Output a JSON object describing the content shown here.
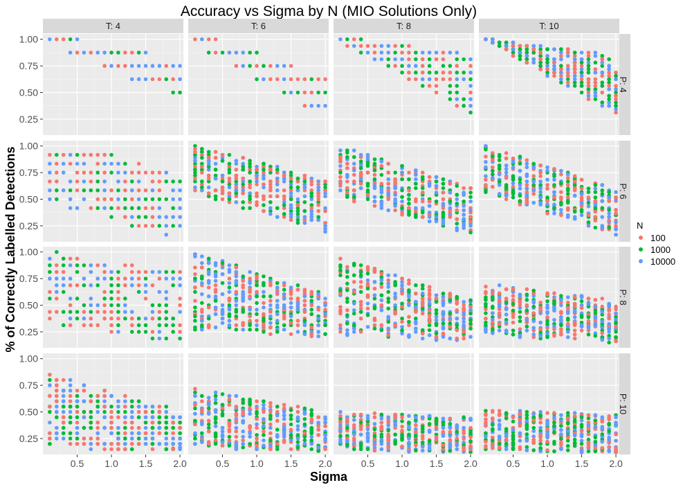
{
  "chart_data": {
    "type": "scatter",
    "title": "Accuracy vs Sigma by N (MIO Solutions Only)",
    "xlabel": "Sigma",
    "ylabel": "% of Correctly Labelled Detections",
    "xlim": [
      0.0,
      2.05
    ],
    "ylim": [
      0.1,
      1.05
    ],
    "x_ticks": [
      "0.5",
      "1.0",
      "1.5",
      "2.0"
    ],
    "x_tick_values": [
      0.5,
      1.0,
      1.5,
      2.0
    ],
    "y_ticks": [
      "0.25",
      "0.50",
      "0.75",
      "1.00"
    ],
    "y_tick_values": [
      0.25,
      0.5,
      0.75,
      1.0
    ],
    "grid": true,
    "facet_columns": [
      "T: 4",
      "T: 6",
      "T: 8",
      "T: 10"
    ],
    "facet_rows": [
      "P: 4",
      "P: 6",
      "P: 8",
      "P: 10"
    ],
    "legend": {
      "title": "N",
      "position": "right",
      "entries": [
        {
          "label": "100",
          "color": "#F8766D"
        },
        {
          "label": "1000",
          "color": "#00BA38"
        },
        {
          "label": "10000",
          "color": "#619CFF"
        }
      ]
    },
    "sigma_values": [
      0.1,
      0.2,
      0.3,
      0.4,
      0.5,
      0.6,
      0.7,
      0.8,
      0.9,
      1.0,
      1.1,
      1.2,
      1.3,
      1.4,
      1.5,
      1.6,
      1.7,
      1.8,
      1.9,
      2.0
    ],
    "panels": [
      {
        "T": 4,
        "P": 4,
        "discrete": 8,
        "start": [
          1.0,
          1.0
        ],
        "end": [
          0.75,
          0.5
        ],
        "spread_lo": 0.25,
        "min_start": 0.2
      },
      {
        "T": 6,
        "P": 4,
        "discrete": 8,
        "start": [
          1.0,
          1.0
        ],
        "end": [
          0.62,
          0.3
        ],
        "spread_lo": 0.2,
        "min_start": 0.55
      },
      {
        "T": 8,
        "P": 4,
        "discrete": 16,
        "start": [
          1.0,
          1.0
        ],
        "end": [
          0.85,
          0.3
        ],
        "spread_lo": 0.2,
        "min_start": 0.55
      },
      {
        "T": 10,
        "P": 4,
        "discrete": 32,
        "start": [
          1.0,
          1.0
        ],
        "end": [
          0.85,
          0.3
        ],
        "spread_lo": 0.15,
        "min_start": 0.6
      },
      {
        "T": 4,
        "P": 6,
        "discrete": 12,
        "start": [
          1.0,
          0.5
        ],
        "end": [
          0.75,
          0.15
        ],
        "spread_lo": 0.25,
        "min_start": 0.0
      },
      {
        "T": 6,
        "P": 6,
        "discrete": 36,
        "start": [
          1.0,
          0.55
        ],
        "end": [
          0.68,
          0.2
        ],
        "spread_lo": 0.25,
        "min_start": 0.0
      },
      {
        "T": 8,
        "P": 6,
        "discrete": 48,
        "start": [
          1.0,
          0.52
        ],
        "end": [
          0.62,
          0.18
        ],
        "spread_lo": 0.25,
        "min_start": 0.0
      },
      {
        "T": 10,
        "P": 6,
        "discrete": 60,
        "start": [
          1.0,
          0.55
        ],
        "end": [
          0.6,
          0.17
        ],
        "spread_lo": 0.25,
        "min_start": 0.0
      },
      {
        "T": 4,
        "P": 8,
        "discrete": 16,
        "start": [
          1.0,
          0.35
        ],
        "end": [
          0.8,
          0.15
        ],
        "spread_lo": 0.15,
        "min_start": 0.0
      },
      {
        "T": 6,
        "P": 8,
        "discrete": 48,
        "start": [
          1.0,
          0.28
        ],
        "end": [
          0.6,
          0.2
        ],
        "spread_lo": 0.2,
        "min_start": 0.0
      },
      {
        "T": 8,
        "P": 8,
        "discrete": 64,
        "start": [
          0.95,
          0.22
        ],
        "end": [
          0.55,
          0.15
        ],
        "spread_lo": 0.2,
        "min_start": 0.0
      },
      {
        "T": 10,
        "P": 8,
        "discrete": 80,
        "start": [
          0.7,
          0.22
        ],
        "end": [
          0.55,
          0.15
        ],
        "spread_lo": 0.15,
        "min_start": 0.0
      },
      {
        "T": 4,
        "P": 10,
        "discrete": 20,
        "start": [
          0.85,
          0.2
        ],
        "end": [
          0.5,
          0.1
        ],
        "spread_lo": 0.15,
        "min_start": 0.0
      },
      {
        "T": 6,
        "P": 10,
        "discrete": 60,
        "start": [
          0.72,
          0.18
        ],
        "end": [
          0.5,
          0.1
        ],
        "spread_lo": 0.15,
        "min_start": 0.0
      },
      {
        "T": 8,
        "P": 10,
        "discrete": 80,
        "start": [
          0.5,
          0.15
        ],
        "end": [
          0.45,
          0.1
        ],
        "spread_lo": 0.1,
        "min_start": 0.0
      },
      {
        "T": 10,
        "P": 10,
        "discrete": 100,
        "start": [
          0.52,
          0.15
        ],
        "end": [
          0.48,
          0.1
        ],
        "spread_lo": 0.1,
        "min_start": 0.0
      }
    ]
  }
}
